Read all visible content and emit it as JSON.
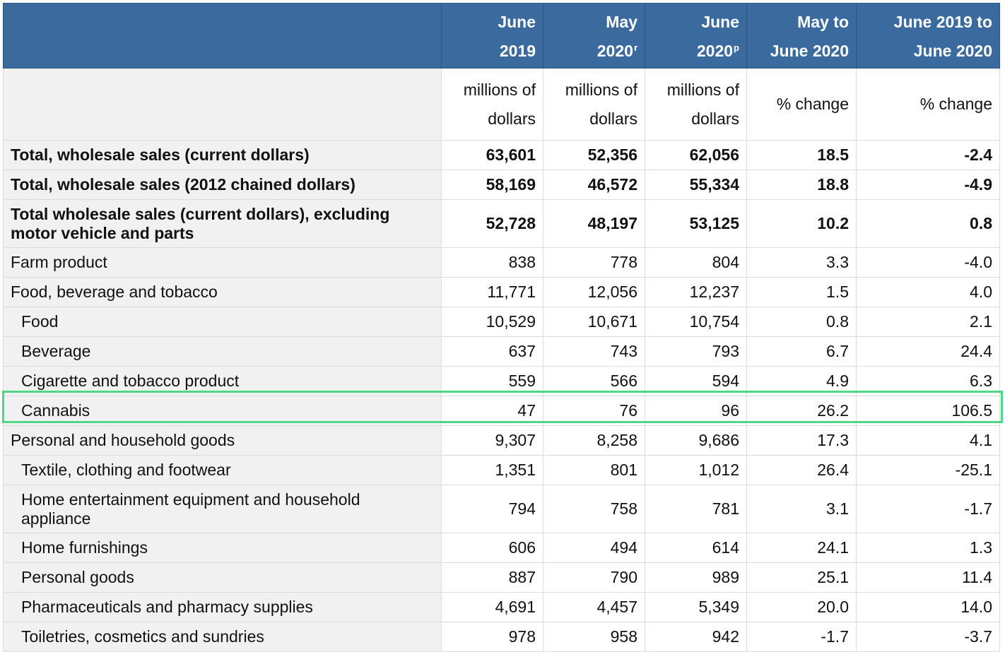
{
  "header": {
    "col1_line1": "June",
    "col1_line2": "2019",
    "col2_line1": "May",
    "col2_line2": "2020",
    "col2_mark": "r",
    "col3_line1": "June",
    "col3_line2": "2020",
    "col3_mark": "p",
    "col4_line1": "May to",
    "col4_line2": "June 2020",
    "col5_line1": "June 2019 to",
    "col5_line2": "June 2020"
  },
  "units": {
    "col1_line1": "millions of",
    "col1_line2": "dollars",
    "col2_line1": "millions of",
    "col2_line2": "dollars",
    "col3_line1": "millions of",
    "col3_line2": "dollars",
    "col4": "% change",
    "col5": "% change"
  },
  "rows": [
    {
      "label": "Total, wholesale sales (current dollars)",
      "v": [
        "63,601",
        "52,356",
        "62,056",
        "18.5",
        "-2.4"
      ]
    },
    {
      "label": "Total, wholesale sales (2012 chained dollars)",
      "v": [
        "58,169",
        "46,572",
        "55,334",
        "18.8",
        "-4.9"
      ]
    },
    {
      "label": "Total wholesale sales (current dollars), excluding motor vehicle and parts",
      "v": [
        "52,728",
        "48,197",
        "53,125",
        "10.2",
        "0.8"
      ]
    },
    {
      "label": "Farm product",
      "v": [
        "838",
        "778",
        "804",
        "3.3",
        "-4.0"
      ]
    },
    {
      "label": "Food, beverage and tobacco",
      "v": [
        "11,771",
        "12,056",
        "12,237",
        "1.5",
        "4.0"
      ]
    },
    {
      "label": "Food",
      "v": [
        "10,529",
        "10,671",
        "10,754",
        "0.8",
        "2.1"
      ]
    },
    {
      "label": "Beverage",
      "v": [
        "637",
        "743",
        "793",
        "6.7",
        "24.4"
      ]
    },
    {
      "label": "Cigarette and tobacco product",
      "v": [
        "559",
        "566",
        "594",
        "4.9",
        "6.3"
      ]
    },
    {
      "label": "Cannabis",
      "v": [
        "47",
        "76",
        "96",
        "26.2",
        "106.5"
      ]
    },
    {
      "label": "Personal and household goods",
      "v": [
        "9,307",
        "8,258",
        "9,686",
        "17.3",
        "4.1"
      ]
    },
    {
      "label": "Textile, clothing and footwear",
      "v": [
        "1,351",
        "801",
        "1,012",
        "26.4",
        "-25.1"
      ]
    },
    {
      "label": "Home entertainment equipment and household appliance",
      "v": [
        "794",
        "758",
        "781",
        "3.1",
        "-1.7"
      ]
    },
    {
      "label": "Home furnishings",
      "v": [
        "606",
        "494",
        "614",
        "24.1",
        "1.3"
      ]
    },
    {
      "label": "Personal goods",
      "v": [
        "887",
        "790",
        "989",
        "25.1",
        "11.4"
      ]
    },
    {
      "label": "Pharmaceuticals and pharmacy supplies",
      "v": [
        "4,691",
        "4,457",
        "5,349",
        "20.0",
        "14.0"
      ]
    },
    {
      "label": "Toiletries, cosmetics and sundries",
      "v": [
        "978",
        "958",
        "942",
        "-1.7",
        "-3.7"
      ]
    }
  ],
  "colors": {
    "header_bg": "#3a6a9e",
    "row_label_bg": "#f1f1f1",
    "highlight_border": "#4fd883"
  }
}
